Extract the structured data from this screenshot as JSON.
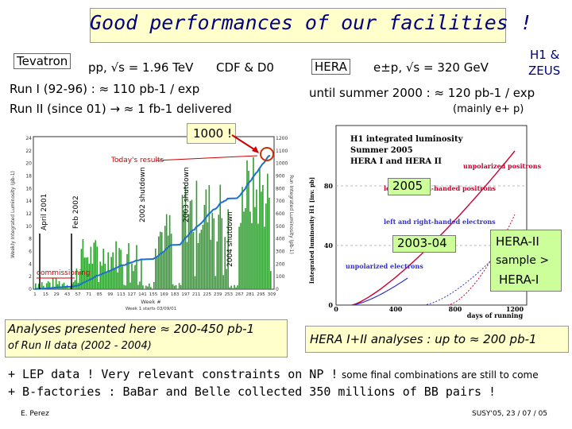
{
  "title": "Good performances of our facilities !",
  "tevatron": {
    "label": "Tevatron",
    "beam": "pp, √s = 1.96 TeV",
    "experiments": "CDF & D0",
    "run1": "Run I (92-96) : ≈ 110 pb-1 / exp",
    "run2": "Run II (since 01) → ≈ 1 fb-1 delivered",
    "callout": "1000 !",
    "chart": {
      "ylabel": "Weekly Integrated Luminosity (pb-1)",
      "ylabel_right": "Run Integrated Luminosity (pb-1)",
      "xlabel": "Week #",
      "footnote": "Week 1 starts 03/09/01",
      "yticks_left": [
        "24",
        "22",
        "20",
        "18",
        "16",
        "14",
        "12",
        "10",
        "8",
        "6",
        "4",
        "2",
        "0"
      ],
      "yticks_right": [
        "1200",
        "1100",
        "1000",
        "900",
        "800",
        "700",
        "600",
        "500",
        "400",
        "300",
        "200",
        "100",
        "0"
      ],
      "xticks": [
        "1",
        "15",
        "29",
        "43",
        "57",
        "71",
        "85",
        "99",
        "113",
        "127",
        "141",
        "155",
        "169",
        "183",
        "197",
        "211",
        "225",
        "239",
        "253",
        "267",
        "281",
        "295",
        "309"
      ],
      "annotations": {
        "todays_results": "Today's results",
        "april2001": "April 2001",
        "feb2002": "Feb 2002",
        "shutdown2002": "2002 shutdown",
        "shutdown2003": "2003 shutdown",
        "shutdown2004": "2004 shutdown",
        "commissioning": "commissioning"
      }
    },
    "summary": "Analyses presented here ≈ 200-450 pb-1",
    "summary2": "of Run II data (2002 - 2004)"
  },
  "hera": {
    "label": "HERA",
    "beam": "e±p, √s = 320 GeV",
    "experiments_line1": "H1 &",
    "experiments_line2": "ZEUS",
    "line1": "until summer 2000 : ≈ 120 pb-1 / exp",
    "line2": "(mainly e+ p)",
    "chart": {
      "title1": "H1 integrated luminosity",
      "title2": "Summer 2005",
      "title3": "HERA I and HERA II",
      "ylabel": "Integrated luminosity H1 [inv. pb]",
      "xlabel": "days of running",
      "yticks": [
        "80",
        "40",
        "0"
      ],
      "xticks": [
        "0",
        "400",
        "800",
        "1200"
      ],
      "legend_unpolarized_positrons": "unpolarized positrons",
      "legend_lr_positrons": "left and right-handed positrons",
      "legend_lr_electrons": "left and right-handed electrons",
      "legend_unpolarized_electrons": "unpolarized electrons"
    },
    "callout_2005": "2005",
    "callout_2003": "2003-04",
    "note_line1": "HERA-II",
    "note_line2": "sample >",
    "note_line3": "HERA-I",
    "summary": "HERA I+II analyses : up to ≈ 200 pb-1"
  },
  "bottom": {
    "line1a": "+ LEP data ! Very relevant constraints on NP !",
    "line1b": "some final combinations are still to come",
    "line2": "+ B-factories : BaBar and Belle collected 350 millions of BB pairs !"
  },
  "footer": {
    "author": "E. Perez",
    "conference": "SUSY'05, 23 / 07 / 05"
  },
  "colors": {
    "title": "#000080",
    "bars": "#2e9e2e",
    "cumulative": "#1d6fd1",
    "positrons": "#cc0033",
    "electrons": "#3333cc",
    "highlight": "#ccff99"
  }
}
